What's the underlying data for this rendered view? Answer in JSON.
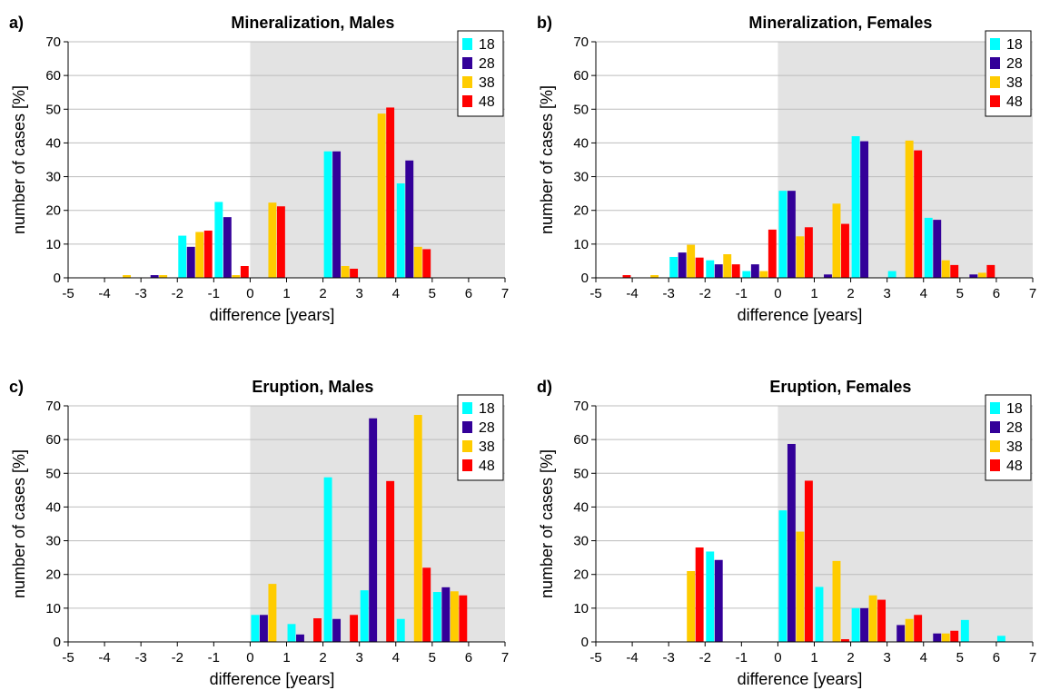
{
  "series_names": [
    "18",
    "28",
    "38",
    "48"
  ],
  "series_colors": [
    "#00ffff",
    "#330099",
    "#ffcc00",
    "#ff0000"
  ],
  "shaded_region_color": "#e3e3e3",
  "gridline_color": "#bdbdbd",
  "chart_data": [
    {
      "type": "bar",
      "panel": "a)",
      "title": "Mineralization, Males",
      "xlabel": "difference  [years]",
      "ylabel": "number of cases [%]",
      "xlim": [
        -5,
        7
      ],
      "ylim": [
        0,
        70
      ],
      "xticks": [
        -5,
        -4,
        -3,
        -2,
        -1,
        0,
        1,
        2,
        3,
        4,
        5,
        6,
        7
      ],
      "yticks": [
        0,
        10,
        20,
        30,
        40,
        50,
        60,
        70
      ],
      "shaded_from": 0,
      "grid": true,
      "legend": "top-right",
      "categories": [
        -4.5,
        -3.5,
        -2.5,
        -1.5,
        -0.5,
        0.5,
        1.5,
        2.5,
        3.5,
        4.5,
        5.5,
        6.5
      ],
      "series": [
        {
          "name": "18",
          "values": [
            0,
            0,
            0,
            12.5,
            22.5,
            0,
            0,
            37.5,
            0,
            28,
            0,
            0
          ]
        },
        {
          "name": "28",
          "values": [
            0,
            0,
            0.8,
            9.2,
            18,
            0,
            0,
            37.5,
            0,
            34.8,
            0,
            0
          ]
        },
        {
          "name": "38",
          "values": [
            0,
            0.8,
            0.8,
            13.6,
            0.8,
            22.3,
            0,
            3.5,
            48.7,
            9.2,
            0,
            0
          ]
        },
        {
          "name": "48",
          "values": [
            0,
            0,
            0,
            14,
            3.5,
            21.2,
            0,
            2.7,
            50.5,
            8.5,
            0,
            0
          ]
        }
      ]
    },
    {
      "type": "bar",
      "panel": "b)",
      "title": "Mineralization, Females",
      "xlabel": "difference  [years]",
      "ylabel": "number of cases [%]",
      "xlim": [
        -5,
        7
      ],
      "ylim": [
        0,
        70
      ],
      "xticks": [
        -5,
        -4,
        -3,
        -2,
        -1,
        0,
        1,
        2,
        3,
        4,
        5,
        6,
        7
      ],
      "yticks": [
        0,
        10,
        20,
        30,
        40,
        50,
        60,
        70
      ],
      "shaded_from": 0,
      "grid": true,
      "legend": "top-right",
      "categories": [
        -4.5,
        -3.5,
        -2.5,
        -1.5,
        -0.5,
        0.5,
        1.5,
        2.5,
        3.5,
        4.5,
        5.5,
        6.5
      ],
      "series": [
        {
          "name": "18",
          "values": [
            0,
            0,
            6.2,
            5.2,
            2.0,
            25.8,
            0,
            42,
            2.0,
            17.8,
            0,
            0
          ]
        },
        {
          "name": "28",
          "values": [
            0,
            0,
            7.5,
            4.0,
            4.0,
            25.8,
            1.0,
            40.5,
            0,
            17.2,
            1.0,
            0
          ]
        },
        {
          "name": "38",
          "values": [
            0,
            0.8,
            9.8,
            7.0,
            2.0,
            12.3,
            22.0,
            0,
            40.7,
            5.2,
            1.5,
            0
          ]
        },
        {
          "name": "48",
          "values": [
            0.8,
            0,
            6.0,
            4.0,
            14.3,
            15.0,
            16.0,
            0,
            37.8,
            3.8,
            3.8,
            0
          ]
        }
      ]
    },
    {
      "type": "bar",
      "panel": "c)",
      "title": "Eruption, Males",
      "xlabel": "difference  [years]",
      "ylabel": "number of cases [%]",
      "xlim": [
        -5,
        7
      ],
      "ylim": [
        0,
        70
      ],
      "xticks": [
        -5,
        -4,
        -3,
        -2,
        -1,
        0,
        1,
        2,
        3,
        4,
        5,
        6,
        7
      ],
      "yticks": [
        0,
        10,
        20,
        30,
        40,
        50,
        60,
        70
      ],
      "shaded_from": 0,
      "grid": true,
      "legend": "top-right",
      "categories": [
        -4.5,
        -3.5,
        -2.5,
        -1.5,
        -0.5,
        0.5,
        1.5,
        2.5,
        3.5,
        4.5,
        5.5,
        6.5
      ],
      "series": [
        {
          "name": "18",
          "values": [
            0,
            0,
            0,
            0,
            0,
            8,
            5.3,
            48.8,
            15.3,
            6.8,
            14.8,
            0
          ]
        },
        {
          "name": "28",
          "values": [
            0,
            0,
            0,
            0,
            0,
            8,
            2.2,
            6.8,
            66.3,
            0,
            16.2,
            0
          ]
        },
        {
          "name": "38",
          "values": [
            0,
            0,
            0,
            0,
            0,
            17.2,
            0,
            0,
            0,
            67.3,
            15.0,
            0
          ]
        },
        {
          "name": "48",
          "values": [
            0,
            0,
            0,
            0,
            0,
            0,
            7.0,
            8.0,
            47.7,
            22.0,
            13.8,
            0
          ]
        }
      ]
    },
    {
      "type": "bar",
      "panel": "d)",
      "title": "Eruption, Females",
      "xlabel": "difference  [years]",
      "ylabel": "number of cases [%]",
      "xlim": [
        -5,
        7
      ],
      "ylim": [
        0,
        70
      ],
      "xticks": [
        -5,
        -4,
        -3,
        -2,
        -1,
        0,
        1,
        2,
        3,
        4,
        5,
        6,
        7
      ],
      "yticks": [
        0,
        10,
        20,
        30,
        40,
        50,
        60,
        70
      ],
      "shaded_from": 0,
      "grid": true,
      "legend": "top-right",
      "categories": [
        -4.5,
        -3.5,
        -2.5,
        -1.5,
        -0.5,
        0.5,
        1.5,
        2.5,
        3.5,
        4.5,
        5.5,
        6.5
      ],
      "series": [
        {
          "name": "18",
          "values": [
            0,
            0,
            0,
            26.8,
            0,
            39,
            16.3,
            10.0,
            0,
            0,
            6.5,
            1.8
          ]
        },
        {
          "name": "28",
          "values": [
            0,
            0,
            0,
            24.3,
            0,
            58.7,
            0,
            10.0,
            5.0,
            2.5,
            0,
            0
          ]
        },
        {
          "name": "38",
          "values": [
            0,
            0,
            21.0,
            0,
            0,
            32.7,
            24.0,
            13.8,
            6.8,
            2.5,
            0,
            0
          ]
        },
        {
          "name": "48",
          "values": [
            0,
            0,
            28.0,
            0,
            0,
            47.8,
            0.8,
            12.5,
            8.0,
            3.3,
            0,
            0
          ]
        }
      ]
    }
  ]
}
